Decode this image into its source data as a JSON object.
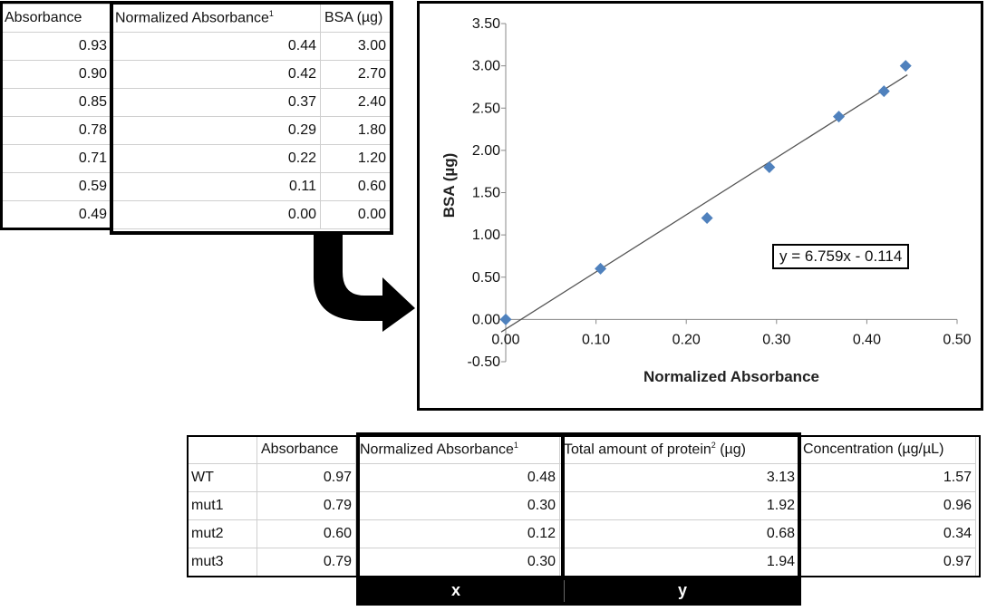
{
  "standards": {
    "headers": [
      "Absorbance",
      "Normalized Absorbance",
      "1",
      "BSA (µg)"
    ],
    "rows": [
      [
        "0.93",
        "0.44",
        "3.00"
      ],
      [
        "0.90",
        "0.42",
        "2.70"
      ],
      [
        "0.85",
        "0.37",
        "2.40"
      ],
      [
        "0.78",
        "0.29",
        "1.80"
      ],
      [
        "0.71",
        "0.22",
        "1.20"
      ],
      [
        "0.59",
        "0.11",
        "0.60"
      ],
      [
        "0.49",
        "0.00",
        "0.00"
      ]
    ]
  },
  "samples": {
    "headers": [
      "",
      "Absorbance",
      "Normalized Absorbance",
      "1",
      "Total amount of protein",
      "2",
      " (µg)",
      "Concentration (µg/µL)"
    ],
    "rows": [
      [
        "WT",
        "0.97",
        "0.48",
        "3.13",
        "1.57"
      ],
      [
        "mut1",
        "0.79",
        "0.30",
        "1.92",
        "0.96"
      ],
      [
        "mut2",
        "0.60",
        "0.12",
        "0.68",
        "0.34"
      ],
      [
        "mut3",
        "0.79",
        "0.30",
        "1.94",
        "0.97"
      ]
    ],
    "x_label": "x",
    "y_label": "y"
  },
  "chart_data": {
    "type": "scatter",
    "xlabel": "Normalized Absorbance",
    "ylabel": "BSA (µg)",
    "xlim": [
      0,
      0.5
    ],
    "ylim": [
      -0.5,
      3.5
    ],
    "x_ticks": [
      "0.00",
      "0.10",
      "0.20",
      "0.30",
      "0.40",
      "0.50"
    ],
    "y_ticks": [
      "-0.50",
      "0.00",
      "0.50",
      "1.00",
      "1.50",
      "2.00",
      "2.50",
      "3.00",
      "3.50"
    ],
    "series": [
      {
        "x": [
          0.0,
          0.105,
          0.223,
          0.292,
          0.369,
          0.419,
          0.443
        ],
        "y": [
          0.0,
          0.6,
          1.2,
          1.8,
          2.4,
          2.7,
          3.0
        ],
        "color": "#4f81bd"
      }
    ],
    "trendline": {
      "slope": 6.759,
      "intercept": -0.114,
      "x_range": [
        -0.005,
        0.445
      ]
    },
    "equation": "y = 6.759x - 0.114",
    "grid": false
  },
  "colors": {
    "marker": "#4f81bd",
    "trendline": "#555555",
    "border": "#000000"
  },
  "arrow": "right-pointing-curved-arrow"
}
